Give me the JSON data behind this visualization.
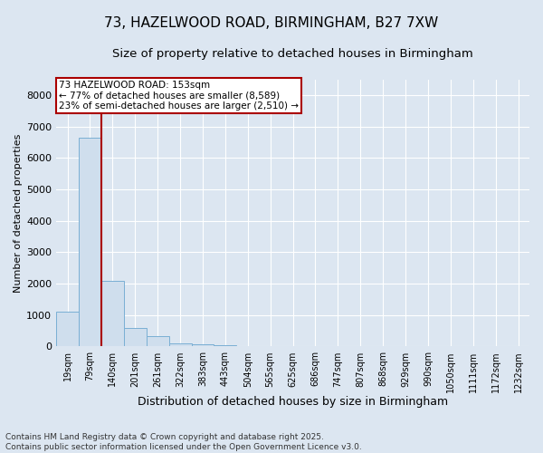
{
  "title_line1": "73, HAZELWOOD ROAD, BIRMINGHAM, B27 7XW",
  "title_line2": "Size of property relative to detached houses in Birmingham",
  "xlabel": "Distribution of detached houses by size in Birmingham",
  "ylabel": "Number of detached properties",
  "categories": [
    "19sqm",
    "79sqm",
    "140sqm",
    "201sqm",
    "261sqm",
    "322sqm",
    "383sqm",
    "443sqm",
    "504sqm",
    "565sqm",
    "625sqm",
    "686sqm",
    "747sqm",
    "807sqm",
    "868sqm",
    "929sqm",
    "990sqm",
    "1050sqm",
    "1111sqm",
    "1172sqm",
    "1232sqm"
  ],
  "values": [
    1100,
    6650,
    2100,
    580,
    330,
    110,
    60,
    55,
    0,
    0,
    0,
    0,
    0,
    0,
    0,
    0,
    0,
    0,
    0,
    0,
    0
  ],
  "bar_color": "#cfdeed",
  "bar_edge_color": "#7aafd4",
  "vline_color": "#aa0000",
  "annotation_text": "73 HAZELWOOD ROAD: 153sqm\n← 77% of detached houses are smaller (8,589)\n23% of semi-detached houses are larger (2,510) →",
  "annotation_box_color": "#aa0000",
  "annotation_bg": "#ffffff",
  "ylim_max": 8500,
  "yticks": [
    0,
    1000,
    2000,
    3000,
    4000,
    5000,
    6000,
    7000,
    8000
  ],
  "background_color": "#dce6f1",
  "footer_text": "Contains HM Land Registry data © Crown copyright and database right 2025.\nContains public sector information licensed under the Open Government Licence v3.0.",
  "grid_color": "#ffffff",
  "title_fontsize": 11,
  "subtitle_fontsize": 9.5,
  "vline_bar_index": 2
}
